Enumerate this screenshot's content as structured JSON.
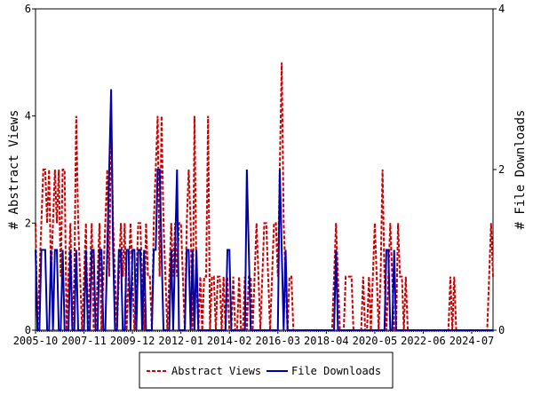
{
  "chart_data": {
    "type": "line",
    "y_label": "# Abstract Views",
    "y2_label": "# File Downloads",
    "ylim": [
      0,
      6
    ],
    "yticks": [
      0,
      2,
      4,
      6
    ],
    "y2lim": [
      0,
      4
    ],
    "y2ticks": [
      0,
      2,
      4
    ],
    "legend": "bottom",
    "x": [
      "2005-10",
      null,
      null,
      null,
      null,
      null,
      null,
      null,
      null,
      null,
      null,
      null,
      null,
      null,
      null,
      null,
      null,
      null,
      null,
      null,
      null,
      null,
      null,
      null,
      null,
      "2007-11",
      null,
      null,
      null,
      null,
      null,
      null,
      null,
      null,
      null,
      null,
      null,
      null,
      null,
      null,
      null,
      null,
      null,
      null,
      null,
      null,
      null,
      null,
      null,
      null,
      "2009-12",
      null,
      null,
      null,
      null,
      null,
      null,
      null,
      null,
      null,
      null,
      null,
      null,
      null,
      null,
      null,
      null,
      null,
      null,
      null,
      null,
      null,
      null,
      null,
      null,
      "2012-01",
      null,
      null,
      null,
      null,
      null,
      null,
      null,
      null,
      null,
      null,
      null,
      null,
      null,
      null,
      null,
      null,
      null,
      null,
      null,
      null,
      null,
      null,
      null,
      null,
      "2014-02",
      null,
      null,
      null,
      null,
      null,
      null,
      null,
      null,
      null,
      null,
      null,
      null,
      null,
      null,
      null,
      null,
      null,
      null,
      null,
      null,
      null,
      null,
      null,
      null,
      "2016-03",
      null,
      null,
      null,
      null,
      null,
      null,
      null,
      null,
      null,
      null,
      null,
      null,
      null,
      null,
      null,
      null,
      null,
      null,
      null,
      null,
      null,
      null,
      null,
      null,
      "2018-04",
      null,
      null,
      null,
      null,
      null,
      null,
      null,
      null,
      null,
      null,
      null,
      null,
      null,
      null,
      null,
      null,
      null,
      null,
      null,
      null,
      null,
      null,
      null,
      null,
      "2020-05",
      null,
      null,
      null,
      null,
      null,
      null,
      null,
      null,
      null,
      null,
      null,
      null,
      null,
      null,
      null,
      null,
      null,
      null,
      null,
      null,
      null,
      null,
      null,
      null,
      "2022-06",
      null,
      null,
      null,
      null,
      null,
      null,
      null,
      null,
      null,
      null,
      null,
      null,
      null,
      null,
      null,
      null,
      null,
      null,
      null,
      null,
      null,
      null,
      null,
      null,
      "2024-07",
      null,
      null,
      null,
      null,
      null,
      null,
      null,
      null,
      null,
      null,
      null
    ],
    "series": [
      {
        "name": "Abstract Views",
        "color": "#cc0000",
        "dash": true,
        "values": [
          2,
          0,
          1,
          2,
          3,
          3,
          2,
          3,
          1,
          2,
          3,
          2,
          3,
          1,
          3,
          3,
          0,
          1,
          2,
          0,
          1,
          4,
          2,
          1,
          0,
          1,
          2,
          0,
          1,
          2,
          0,
          0,
          1,
          2,
          0,
          1,
          2,
          3,
          1,
          4,
          2,
          1,
          0,
          1,
          2,
          1,
          2,
          0,
          1,
          2,
          1,
          0,
          1,
          2,
          2,
          1,
          0,
          2,
          1,
          1,
          0,
          2,
          3,
          4,
          1,
          4,
          2,
          1,
          0,
          1,
          2,
          1,
          2,
          1,
          2,
          2,
          1,
          0,
          2,
          3,
          2,
          0,
          4,
          1,
          0,
          1,
          0,
          1,
          1,
          4,
          0,
          1,
          1,
          0,
          1,
          1,
          0,
          1,
          0,
          1,
          0,
          0,
          1,
          0,
          0,
          1,
          0,
          0,
          1,
          0,
          1,
          1,
          0,
          1,
          2,
          1,
          0,
          1,
          2,
          2,
          1,
          0,
          1,
          2,
          2,
          1,
          3,
          5,
          2,
          1,
          0,
          1,
          1,
          0,
          0,
          0,
          0,
          0,
          0,
          0,
          0,
          0,
          0,
          0,
          0,
          0,
          0,
          0,
          0,
          0,
          0,
          0,
          0,
          0,
          1,
          2,
          1,
          0,
          0,
          0,
          1,
          1,
          1,
          1,
          0,
          0,
          0,
          0,
          0,
          1,
          0,
          0,
          1,
          0,
          1,
          2,
          1,
          0,
          1,
          3,
          1,
          0,
          1,
          2,
          1,
          0,
          0,
          2,
          1,
          1,
          0,
          1,
          0,
          0,
          0,
          0,
          0,
          0,
          0,
          0,
          0,
          0,
          0,
          0,
          0,
          0,
          0,
          0,
          0,
          0,
          0,
          0,
          0,
          0,
          1,
          0,
          1,
          0,
          0,
          0,
          0,
          0,
          0,
          0,
          0,
          0,
          0,
          0,
          0,
          0,
          0,
          0,
          0,
          0,
          1,
          2,
          1
        ]
      },
      {
        "name": "File Downloads",
        "color": "#0000aa",
        "axis": "y2",
        "values": [
          1,
          0,
          0,
          1,
          1,
          1,
          0,
          0,
          1,
          0,
          1,
          1,
          0,
          0,
          1,
          0,
          0,
          0,
          1,
          0,
          0,
          1,
          0,
          0,
          0,
          0,
          1,
          0,
          0,
          1,
          1,
          0,
          0,
          1,
          1,
          0,
          0,
          1,
          2,
          3,
          1,
          0,
          0,
          1,
          1,
          0,
          0,
          1,
          1,
          0,
          1,
          1,
          0,
          1,
          1,
          0,
          1,
          0,
          0,
          0,
          0,
          1,
          1,
          2,
          2,
          1,
          0,
          0,
          0,
          0,
          1,
          0,
          1,
          2,
          0,
          0,
          0,
          0,
          1,
          1,
          0,
          1,
          0,
          1,
          0,
          0,
          0,
          0,
          0,
          0,
          0,
          0,
          0,
          0,
          0,
          0,
          0,
          0,
          0,
          1,
          1,
          0,
          0,
          0,
          0,
          0,
          0,
          0,
          0,
          2,
          1,
          0,
          0,
          0,
          0,
          0,
          0,
          0,
          0,
          0,
          0,
          0,
          0,
          0,
          0,
          0,
          2,
          1,
          0,
          1,
          0,
          0,
          0,
          0,
          0,
          0,
          0,
          0,
          0,
          0,
          0,
          0,
          0,
          0,
          0,
          0,
          0,
          0,
          0,
          0,
          0,
          0,
          0,
          0,
          0,
          1,
          0,
          0,
          0,
          0,
          0,
          0,
          0,
          0,
          0,
          0,
          0,
          0,
          0,
          0,
          0,
          0,
          0,
          0,
          0,
          0,
          0,
          0,
          0,
          0,
          0,
          1,
          1,
          0,
          0,
          1,
          0,
          0,
          0,
          0,
          0,
          0,
          0,
          0,
          0,
          0,
          0,
          0,
          0,
          0,
          0,
          0,
          0,
          0,
          0,
          0,
          0,
          0,
          0,
          0,
          0,
          0,
          0,
          0,
          0,
          0,
          0,
          0,
          0,
          0,
          0,
          0,
          0,
          0,
          0,
          0,
          0,
          0,
          0,
          0,
          0,
          0,
          0,
          0,
          0,
          0,
          0
        ]
      }
    ]
  }
}
